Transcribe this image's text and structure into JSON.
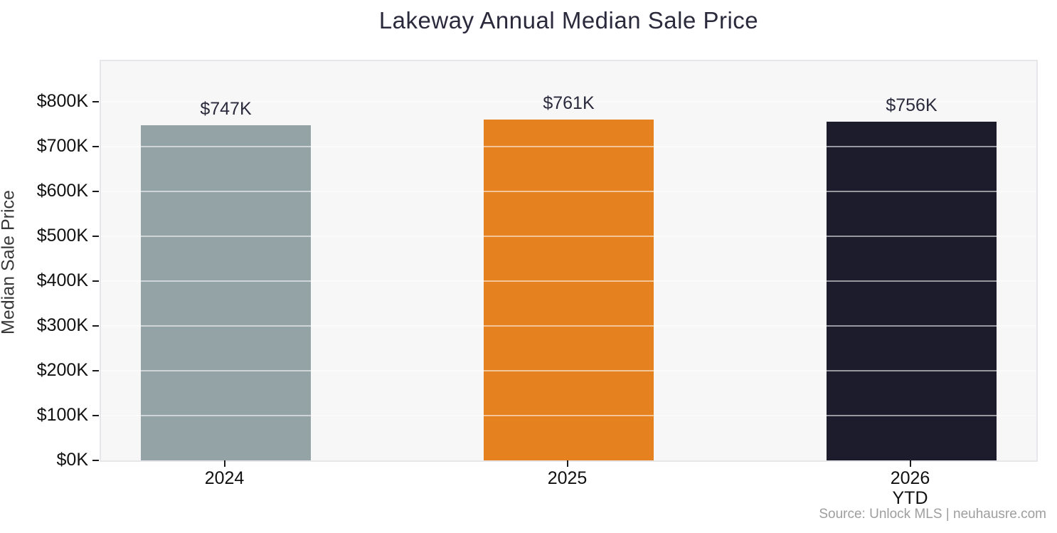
{
  "chart": {
    "title": "Lakeway Annual Median Sale Price",
    "y_axis_title": "Median Sale Price",
    "source": "Source: Unlock MLS | neuhausre.com"
  },
  "chart_data": {
    "type": "bar",
    "title": "Lakeway Annual Median Sale Price",
    "xlabel": "",
    "ylabel": "Median Sale Price",
    "categories": [
      "2024",
      "2025",
      "2026 YTD"
    ],
    "values": [
      747000,
      761000,
      756000
    ],
    "bars": [
      {
        "category": "2024",
        "category_line2": "",
        "value_k": 747,
        "value_label": "$747K",
        "color": "#94a3a6"
      },
      {
        "category": "2025",
        "category_line2": "",
        "value_k": 761,
        "value_label": "$761K",
        "color": "#e5811f"
      },
      {
        "category": "2026",
        "category_line2": "YTD",
        "value_k": 756,
        "value_label": "$756K",
        "color": "#1c1c2d"
      }
    ],
    "y_axis": {
      "tick_values_k": [
        0,
        100,
        200,
        300,
        400,
        500,
        600,
        700,
        800
      ],
      "tick_labels": [
        "$0K",
        "$100K",
        "$200K",
        "$300K",
        "$400K",
        "$500K",
        "$600K",
        "$700K",
        "$800K"
      ],
      "ylim_k": [
        0,
        897
      ],
      "grid": true
    },
    "legend": "none",
    "colors": {
      "panel_background": "#f7f7f8",
      "gridline": "#ffffff",
      "title_text": "#2a2a3c",
      "axis_text": "#111111",
      "source_text": "#9e9e9e"
    },
    "source": "Source: Unlock MLS | neuhausre.com"
  }
}
